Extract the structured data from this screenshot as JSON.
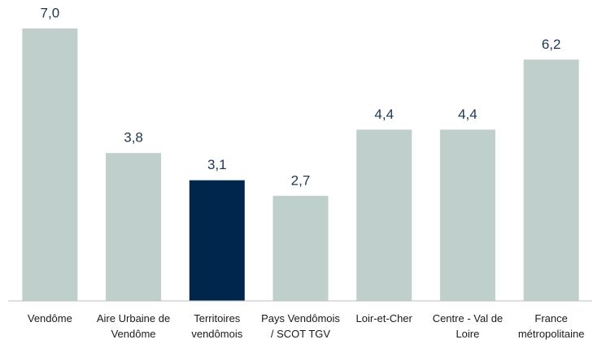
{
  "chart_data": {
    "type": "bar",
    "categories": [
      "Vendôme",
      "Aire Urbaine de Vendôme",
      "Territoires vendômois",
      "Pays Vendômois / SCOT TGV",
      "Loir-et-Cher",
      "Centre - Val de Loire",
      "France métropolitaine"
    ],
    "values": [
      7.0,
      3.8,
      3.1,
      2.7,
      4.4,
      4.4,
      6.2
    ],
    "value_labels": [
      "7,0",
      "3,8",
      "3,1",
      "2,7",
      "4,4",
      "4,4",
      "6,2"
    ],
    "colors": [
      "#bfcfcc",
      "#bfcfcc",
      "#00264d",
      "#bfcfcc",
      "#bfcfcc",
      "#bfcfcc",
      "#bfcfcc"
    ],
    "ylim": [
      0,
      7
    ]
  }
}
